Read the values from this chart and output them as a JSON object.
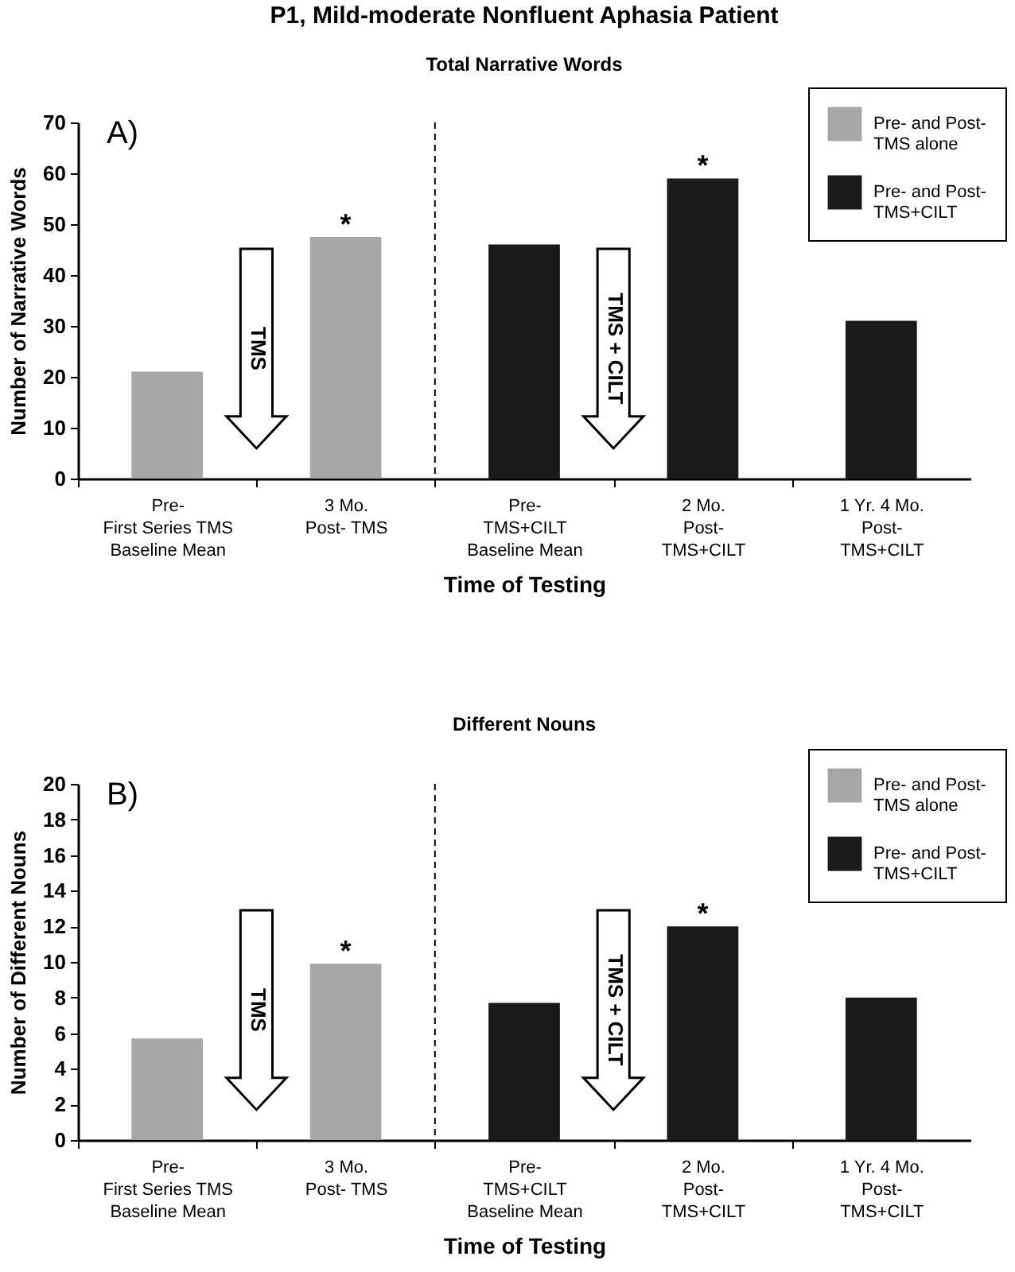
{
  "chart_data": [
    {
      "type": "bar",
      "title": "P1, Mild-moderate Nonfluent Aphasia Patient",
      "subtitle": "Total Narrative Words",
      "xlabel": "Time of Testing",
      "ylabel": "Number of Narrative Words",
      "categories": [
        "Pre-\nFirst Series TMS\nBaseline Mean",
        "3 Mo.\nPost- TMS",
        "Pre-\nTMS+CILT\nBaseline Mean",
        "2 Mo.\nPost-\nTMS+CILT",
        "1 Yr. 4 Mo.\nPost-\nTMS+CILT"
      ],
      "series": [
        {
          "name": "Pre- and Post-\nTMS alone",
          "color": "#a7a7a9",
          "values": [
            21,
            47.5,
            null,
            null,
            null
          ]
        },
        {
          "name": "Pre- and Post-\nTMS+CILT",
          "color": "#1a1a1a",
          "values": [
            null,
            null,
            46,
            59,
            31
          ]
        }
      ],
      "ylim": [
        0,
        70
      ],
      "yticks": [
        0,
        10,
        20,
        30,
        40,
        50,
        60,
        70
      ],
      "legend": "top right",
      "annotations": [
        "A)",
        "TMS",
        "TMS + CILT",
        {
          "text": "*",
          "x": "3 Mo.\nPost- TMS",
          "y": 47.5
        },
        {
          "text": "*",
          "x": "2 Mo.\nPost-\nTMS+CILT",
          "y": 59
        }
      ]
    },
    {
      "type": "bar",
      "title": "Different Nouns",
      "xlabel": "Time of Testing",
      "ylabel": "Number of Different Nouns",
      "categories": [
        "Pre-\nFirst Series TMS\nBaseline Mean",
        "3 Mo.\nPost- TMS",
        "Pre-\nTMS+CILT\nBaseline Mean",
        "2 Mo.\nPost-\nTMS+CILT",
        "1 Yr. 4 Mo.\nPost-\nTMS+CILT"
      ],
      "series": [
        {
          "name": "Pre- and Post-\nTMS alone",
          "color": "#a7a7a9",
          "values": [
            5.7,
            9.9,
            null,
            null,
            null
          ]
        },
        {
          "name": "Pre- and Post-\nTMS+CILT",
          "color": "#1a1a1a",
          "values": [
            null,
            null,
            7.7,
            12,
            8
          ]
        }
      ],
      "ylim": [
        0,
        20
      ],
      "yticks": [
        0,
        2,
        4,
        6,
        8,
        10,
        12,
        14,
        16,
        18,
        20
      ],
      "legend": "top right",
      "annotations": [
        "B)",
        "TMS",
        "TMS + CILT",
        {
          "text": "*",
          "x": "3 Mo.\nPost- TMS",
          "y": 9.9
        },
        {
          "text": "*",
          "x": "2 Mo.\nPost-\nTMS+CILT",
          "y": 12
        }
      ]
    }
  ]
}
